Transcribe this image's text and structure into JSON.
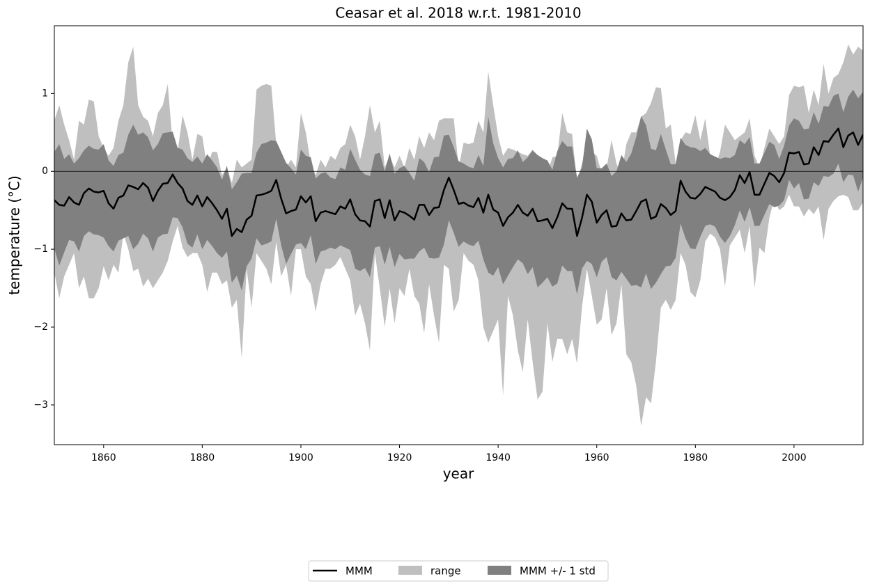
{
  "chart_data": {
    "type": "line",
    "title": "Ceasar et al. 2018 w.r.t. 1981-2010",
    "x_label": "year",
    "y_label": "temperature (°C)",
    "xlim": [
      1850,
      2014
    ],
    "ylim": [
      -3.51,
      1.87
    ],
    "xticks": [
      1860,
      1880,
      1900,
      1920,
      1940,
      1960,
      1980,
      2000
    ],
    "yticks": [
      {
        "value": -3,
        "label": "−3"
      },
      {
        "value": -2,
        "label": "−2"
      },
      {
        "value": -1,
        "label": "−1"
      },
      0,
      1
    ],
    "hline": 0,
    "legend": "lower center",
    "x": [
      1850,
      1851,
      1852,
      1853,
      1854,
      1855,
      1856,
      1857,
      1858,
      1859,
      1860,
      1861,
      1862,
      1863,
      1864,
      1865,
      1866,
      1867,
      1868,
      1869,
      1870,
      1871,
      1872,
      1873,
      1874,
      1875,
      1876,
      1877,
      1878,
      1879,
      1880,
      1881,
      1882,
      1883,
      1884,
      1885,
      1886,
      1887,
      1888,
      1889,
      1890,
      1891,
      1892,
      1893,
      1894,
      1895,
      1896,
      1897,
      1898,
      1899,
      1900,
      1901,
      1902,
      1903,
      1904,
      1905,
      1906,
      1907,
      1908,
      1909,
      1910,
      1911,
      1912,
      1913,
      1914,
      1915,
      1916,
      1917,
      1918,
      1919,
      1920,
      1921,
      1922,
      1923,
      1924,
      1925,
      1926,
      1927,
      1928,
      1929,
      1930,
      1931,
      1932,
      1933,
      1934,
      1935,
      1936,
      1937,
      1938,
      1939,
      1940,
      1941,
      1942,
      1943,
      1944,
      1945,
      1946,
      1947,
      1948,
      1949,
      1950,
      1951,
      1952,
      1953,
      1954,
      1955,
      1956,
      1957,
      1958,
      1959,
      1960,
      1961,
      1962,
      1963,
      1964,
      1965,
      1966,
      1967,
      1968,
      1969,
      1970,
      1971,
      1972,
      1973,
      1974,
      1975,
      1976,
      1977,
      1978,
      1979,
      1980,
      1981,
      1982,
      1983,
      1984,
      1985,
      1986,
      1987,
      1988,
      1989,
      1990,
      1991,
      1992,
      1993,
      1994,
      1995,
      1996,
      1997,
      1998,
      1999,
      2000,
      2001,
      2002,
      2003,
      2004,
      2005,
      2006,
      2007,
      2008,
      2009,
      2010,
      2011,
      2012,
      2013,
      2014
    ],
    "series": [
      {
        "name": "MMM",
        "color": "#000000",
        "values": [
          -0.37,
          -0.43,
          -0.44,
          -0.33,
          -0.4,
          -0.43,
          -0.28,
          -0.22,
          -0.26,
          -0.27,
          -0.25,
          -0.41,
          -0.48,
          -0.34,
          -0.31,
          -0.18,
          -0.2,
          -0.23,
          -0.15,
          -0.21,
          -0.38,
          -0.25,
          -0.16,
          -0.15,
          -0.04,
          -0.15,
          -0.22,
          -0.38,
          -0.43,
          -0.31,
          -0.45,
          -0.33,
          -0.41,
          -0.5,
          -0.61,
          -0.48,
          -0.83,
          -0.74,
          -0.78,
          -0.62,
          -0.57,
          -0.31,
          -0.3,
          -0.28,
          -0.25,
          -0.11,
          -0.35,
          -0.54,
          -0.51,
          -0.49,
          -0.32,
          -0.4,
          -0.32,
          -0.64,
          -0.53,
          -0.51,
          -0.53,
          -0.55,
          -0.45,
          -0.48,
          -0.36,
          -0.55,
          -0.63,
          -0.64,
          -0.71,
          -0.38,
          -0.36,
          -0.6,
          -0.37,
          -0.63,
          -0.51,
          -0.53,
          -0.57,
          -0.62,
          -0.43,
          -0.43,
          -0.56,
          -0.47,
          -0.46,
          -0.24,
          -0.08,
          -0.24,
          -0.42,
          -0.4,
          -0.44,
          -0.46,
          -0.34,
          -0.53,
          -0.3,
          -0.49,
          -0.53,
          -0.7,
          -0.59,
          -0.53,
          -0.43,
          -0.53,
          -0.57,
          -0.48,
          -0.64,
          -0.63,
          -0.61,
          -0.73,
          -0.59,
          -0.41,
          -0.48,
          -0.48,
          -0.83,
          -0.6,
          -0.3,
          -0.39,
          -0.66,
          -0.56,
          -0.5,
          -0.71,
          -0.7,
          -0.54,
          -0.63,
          -0.62,
          -0.51,
          -0.39,
          -0.36,
          -0.61,
          -0.58,
          -0.42,
          -0.47,
          -0.56,
          -0.51,
          -0.12,
          -0.26,
          -0.34,
          -0.35,
          -0.29,
          -0.2,
          -0.23,
          -0.26,
          -0.34,
          -0.37,
          -0.33,
          -0.24,
          -0.05,
          -0.15,
          -0.01,
          -0.3,
          -0.3,
          -0.16,
          -0.02,
          -0.06,
          -0.14,
          -0.02,
          0.24,
          0.23,
          0.25,
          0.09,
          0.1,
          0.31,
          0.21,
          0.39,
          0.38,
          0.47,
          0.55,
          0.31,
          0.46,
          0.5,
          0.34,
          0.47
        ]
      },
      {
        "name": "range",
        "color": "#bfbfbf",
        "upper": [
          0.65,
          0.85,
          0.6,
          0.4,
          0.15,
          0.65,
          0.6,
          0.92,
          0.9,
          0.45,
          0.3,
          0.2,
          0.3,
          0.65,
          0.85,
          1.4,
          1.6,
          0.85,
          0.7,
          0.65,
          0.45,
          0.75,
          0.85,
          1.12,
          0.35,
          0.25,
          0.72,
          0.5,
          0.15,
          0.48,
          0.45,
          0.05,
          0.25,
          0.25,
          -0.05,
          0.05,
          -0.15,
          0.15,
          0.05,
          0.1,
          0.15,
          1.05,
          1.1,
          1.12,
          1.1,
          0.35,
          0.25,
          0.05,
          0.15,
          0.05,
          0.75,
          0.5,
          0.1,
          -0.05,
          0.15,
          0.05,
          0.2,
          0.15,
          0.3,
          0.35,
          0.6,
          0.45,
          0.15,
          0.45,
          0.85,
          0.5,
          0.65,
          0.05,
          0.2,
          0.05,
          0.2,
          0.05,
          0.3,
          0.15,
          0.45,
          0.3,
          0.5,
          0.4,
          0.65,
          0.68,
          0.68,
          0.68,
          0.05,
          0.37,
          0.35,
          0.37,
          0.65,
          0.5,
          1.28,
          0.85,
          0.45,
          0.2,
          0.3,
          0.28,
          0.25,
          0.22,
          0.2,
          0.28,
          0.1,
          0.15,
          -0.02,
          0.18,
          0.2,
          0.75,
          0.5,
          0.48,
          -0.15,
          0.1,
          0.3,
          0.25,
          0.2,
          -0.02,
          0.05,
          0.4,
          0.1,
          -0.05,
          0.35,
          0.5,
          0.5,
          0.7,
          0.75,
          0.88,
          1.08,
          1.07,
          0.55,
          0.6,
          0.1,
          0.4,
          0.5,
          0.48,
          0.72,
          0.4,
          0.68,
          0.2,
          0.05,
          0.25,
          0.6,
          0.5,
          0.4,
          0.45,
          0.5,
          0.68,
          0.2,
          0.05,
          0.3,
          0.55,
          0.45,
          0.35,
          0.45,
          0.98,
          1.1,
          1.08,
          1.1,
          0.75,
          1.05,
          0.85,
          1.38,
          1.0,
          1.2,
          1.25,
          1.4,
          1.63,
          1.5,
          1.6,
          1.55
        ],
        "lower": [
          -1.3,
          -1.63,
          -1.35,
          -1.2,
          -1.05,
          -1.5,
          -1.35,
          -1.63,
          -1.63,
          -1.5,
          -1.22,
          -1.4,
          -1.2,
          -1.3,
          -0.8,
          -1.0,
          -1.28,
          -1.25,
          -1.48,
          -1.38,
          -1.5,
          -1.4,
          -1.3,
          -1.15,
          -0.9,
          -0.7,
          -0.98,
          -1.1,
          -1.05,
          -1.05,
          -1.2,
          -1.55,
          -1.3,
          -1.3,
          -1.45,
          -1.4,
          -1.75,
          -1.65,
          -2.4,
          -1.25,
          -1.75,
          -1.05,
          -1.15,
          -1.25,
          -1.45,
          -0.9,
          -1.35,
          -1.2,
          -1.6,
          -1.0,
          -1.0,
          -1.35,
          -1.45,
          -1.8,
          -1.45,
          -1.25,
          -1.25,
          -1.2,
          -1.1,
          -1.25,
          -1.4,
          -1.85,
          -1.7,
          -1.95,
          -2.3,
          -1.05,
          -1.5,
          -2.0,
          -1.5,
          -1.95,
          -1.5,
          -1.6,
          -1.25,
          -1.6,
          -1.7,
          -2.08,
          -1.45,
          -1.85,
          -2.2,
          -1.2,
          -1.25,
          -1.8,
          -1.65,
          -1.05,
          -1.15,
          -1.2,
          -1.4,
          -2.0,
          -2.2,
          -2.05,
          -1.9,
          -2.88,
          -1.6,
          -1.85,
          -2.3,
          -2.58,
          -1.9,
          -2.45,
          -2.93,
          -2.83,
          -1.95,
          -2.45,
          -2.15,
          -2.15,
          -2.35,
          -2.15,
          -2.47,
          -1.75,
          -1.25,
          -1.6,
          -1.97,
          -1.9,
          -1.5,
          -2.1,
          -1.95,
          -1.45,
          -2.35,
          -2.45,
          -2.75,
          -3.27,
          -2.9,
          -2.98,
          -2.45,
          -1.75,
          -1.65,
          -1.78,
          -1.65,
          -1.05,
          -1.2,
          -1.55,
          -1.62,
          -1.4,
          -0.9,
          -0.8,
          -0.85,
          -1.0,
          -1.48,
          -0.95,
          -0.85,
          -0.75,
          -1.05,
          -0.7,
          -1.5,
          -0.98,
          -1.05,
          -0.6,
          -0.35,
          -0.5,
          -0.45,
          -0.3,
          -0.45,
          -0.45,
          -0.58,
          -0.48,
          -0.55,
          -0.45,
          -0.88,
          -0.48,
          -0.38,
          -0.32,
          -0.3,
          -0.33,
          -0.5,
          -0.5,
          -0.4
        ]
      },
      {
        "name": "MMM +/- 1 std",
        "color": "#808080",
        "values": [
          0.62,
          0.78,
          0.6,
          0.55,
          0.5,
          0.6,
          0.55,
          0.55,
          0.55,
          0.55,
          0.6,
          0.55,
          0.55,
          0.55,
          0.55,
          0.65,
          0.8,
          0.7,
          0.65,
          0.65,
          0.65,
          0.6,
          0.65,
          0.65,
          0.55,
          0.45,
          0.5,
          0.55,
          0.55,
          0.5,
          0.55,
          0.55,
          0.55,
          0.55,
          0.5,
          0.55,
          0.6,
          0.6,
          0.75,
          0.6,
          0.55,
          0.55,
          0.65,
          0.65,
          0.65,
          0.5,
          0.6,
          0.65,
          0.55,
          0.45,
          0.6,
          0.6,
          0.5,
          0.55,
          0.5,
          0.5,
          0.45,
          0.45,
          0.5,
          0.5,
          0.65,
          0.7,
          0.65,
          0.6,
          0.65,
          0.6,
          0.6,
          0.6,
          0.6,
          0.6,
          0.55,
          0.6,
          0.55,
          0.5,
          0.6,
          0.55,
          0.55,
          0.65,
          0.65,
          0.7,
          0.55,
          0.55,
          0.55,
          0.5,
          0.5,
          0.5,
          0.55,
          0.6,
          1.0,
          0.85,
          0.7,
          0.75,
          0.75,
          0.7,
          0.7,
          0.65,
          0.75,
          0.75,
          0.85,
          0.8,
          0.75,
          0.75,
          0.85,
          0.8,
          0.8,
          0.8,
          0.75,
          0.65,
          0.85,
          0.8,
          0.7,
          0.6,
          0.6,
          0.65,
          0.7,
          0.75,
          0.75,
          0.85,
          0.95,
          1.1,
          0.95,
          0.9,
          0.85,
          0.9,
          0.75,
          0.65,
          0.6,
          0.55,
          0.6,
          0.65,
          0.65,
          0.55,
          0.5,
          0.45,
          0.45,
          0.5,
          0.55,
          0.5,
          0.45,
          0.45,
          0.5,
          0.45,
          0.4,
          0.4,
          0.4,
          0.4,
          0.4,
          0.3,
          0.35,
          0.35,
          0.45,
          0.4,
          0.45,
          0.45,
          0.45,
          0.4,
          0.45,
          0.45,
          0.5,
          0.45,
          0.45,
          0.5,
          0.55,
          0.6,
          0.55
        ]
      }
    ]
  }
}
